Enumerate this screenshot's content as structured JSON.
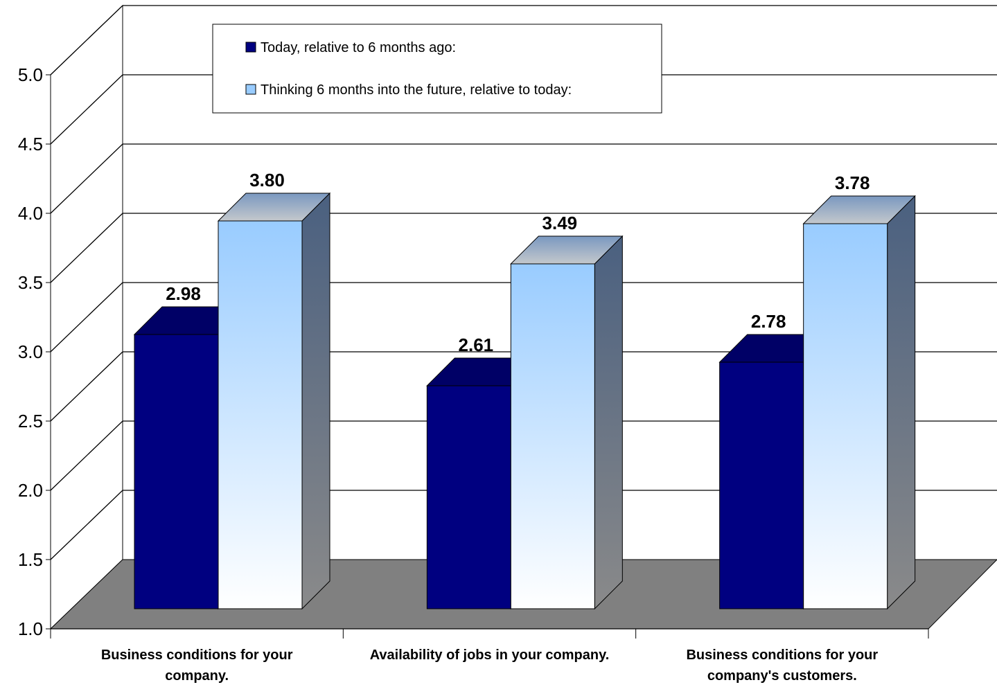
{
  "chart_data": {
    "type": "bar",
    "style": "3d-clustered-column",
    "categories": [
      [
        "Business conditions for your",
        "company."
      ],
      [
        "Availability of jobs in your company."
      ],
      [
        "Business conditions for your",
        "company's customers."
      ]
    ],
    "series": [
      {
        "name": "Today, relative to 6 months ago:",
        "values": [
          2.98,
          2.61,
          2.78
        ],
        "color": "#000080",
        "value_labels": [
          "2.98",
          "2.61",
          "2.78"
        ]
      },
      {
        "name": "Thinking 6 months into the future, relative to today:",
        "values": [
          3.8,
          3.49,
          3.78
        ],
        "color": "#99ccff",
        "value_labels": [
          "3.80",
          "3.49",
          "3.78"
        ]
      }
    ],
    "ylim": [
      1.0,
      5.0
    ],
    "yticks": [
      "1.0",
      "1.5",
      "2.0",
      "2.5",
      "3.0",
      "3.5",
      "4.0",
      "4.5",
      "5.0"
    ],
    "grid": true,
    "legend_position": "top-center",
    "floor_color": "#808080"
  }
}
